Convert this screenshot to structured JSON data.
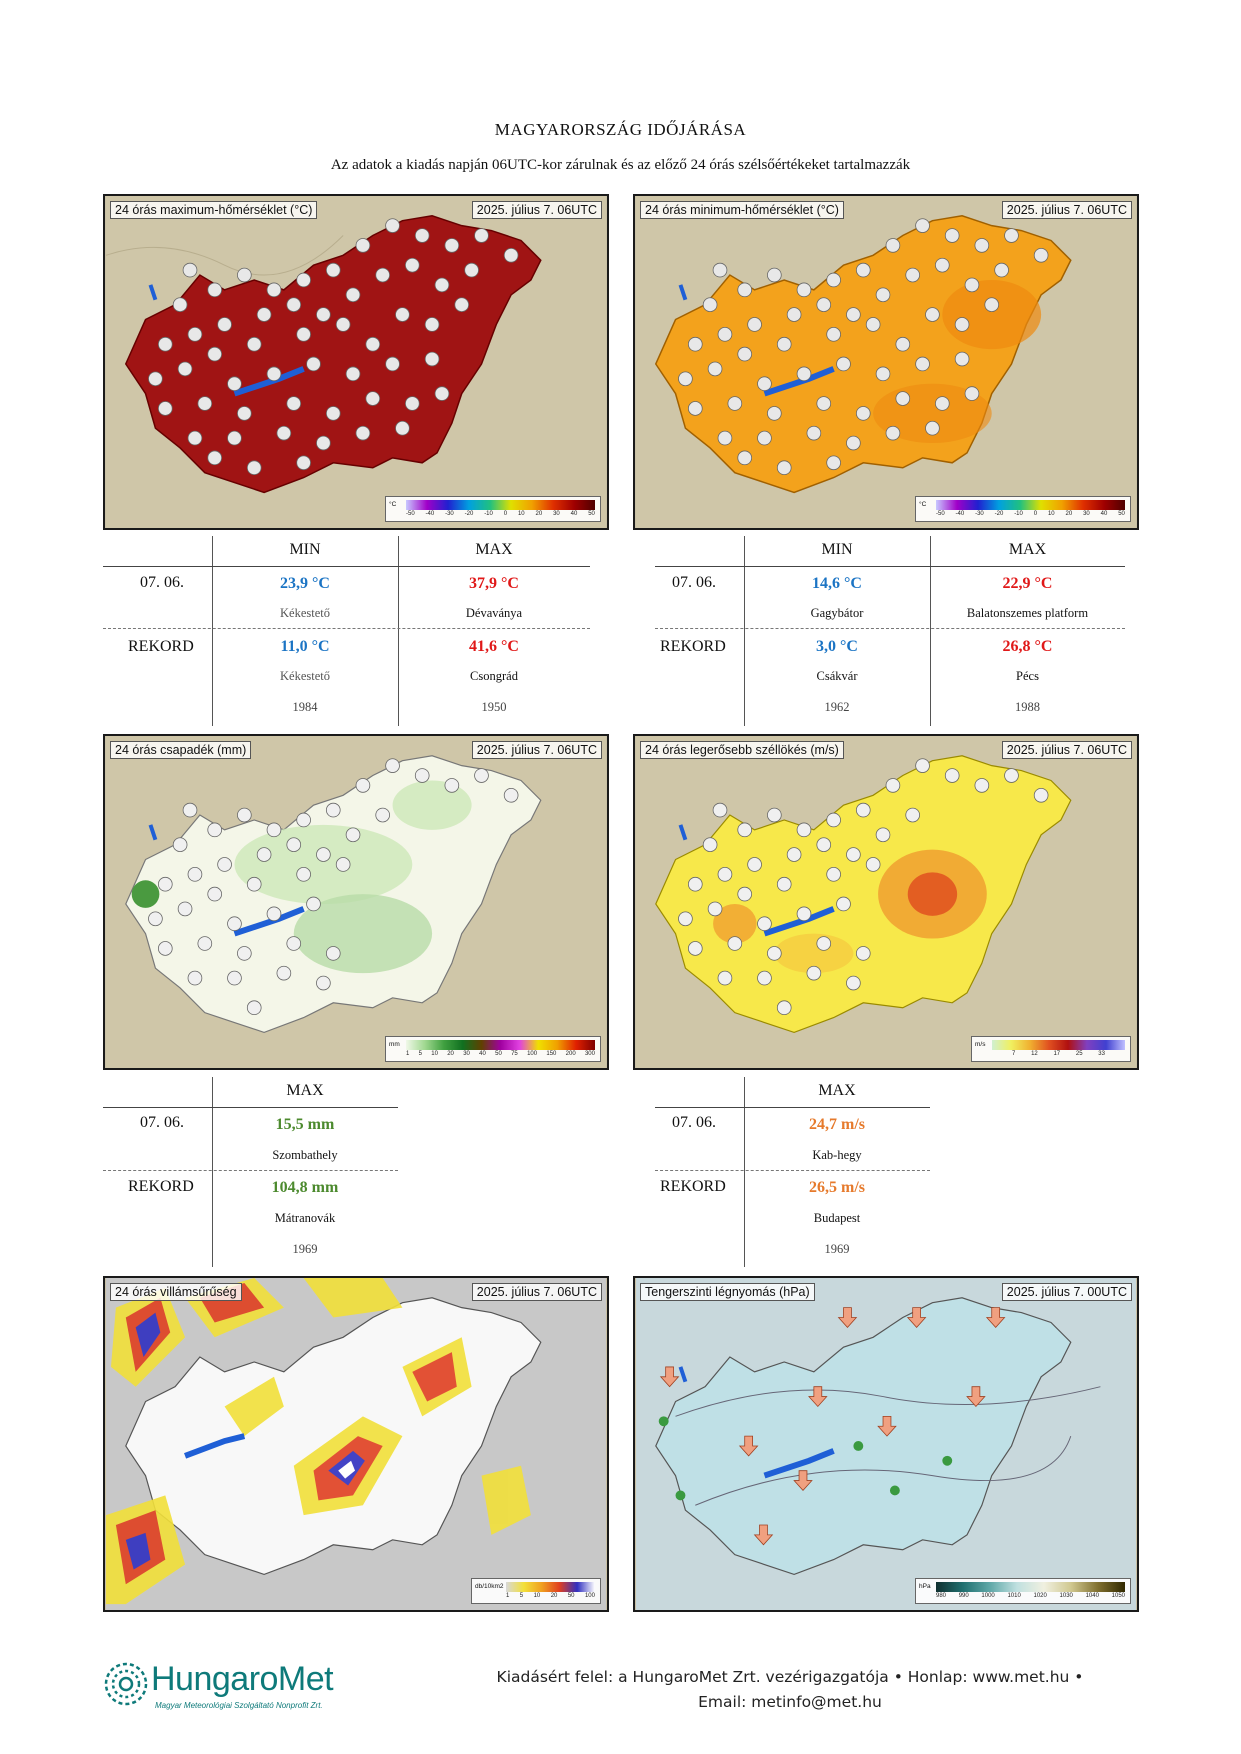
{
  "header": {
    "title": "MAGYARORSZÁG IDŐJÁRÁSA",
    "subtitle": "Az adatok a kiadás napján 06UTC-kor zárulnak és az előző 24 órás szélsőértékeket tartalmazzák"
  },
  "maps": {
    "tmax": {
      "title": "24 órás maximum-hőmérséklet (°C)",
      "date": "2025. július 7. 06UTC",
      "legend_unit": "°C",
      "legend_ticks": [
        "-50",
        "-40",
        "-30",
        "-20",
        "-10",
        "0",
        "10",
        "20",
        "30",
        "40",
        "50"
      ]
    },
    "tmin": {
      "title": "24 órás minimum-hőmérséklet (°C)",
      "date": "2025. július 7. 06UTC",
      "legend_unit": "°C",
      "legend_ticks": [
        "-50",
        "-40",
        "-30",
        "-20",
        "-10",
        "0",
        "10",
        "20",
        "30",
        "40",
        "50"
      ]
    },
    "precip": {
      "title": "24 órás csapadék (mm)",
      "date": "2025. július 7. 06UTC",
      "legend_unit": "mm",
      "legend_ticks": [
        "1",
        "5",
        "10",
        "20",
        "30",
        "40",
        "50",
        "75",
        "100",
        "150",
        "200",
        "300"
      ]
    },
    "gust": {
      "title": "24 órás legerősebb széllökés (m/s)",
      "date": "2025. július 7. 06UTC",
      "legend_unit": "m/s",
      "legend_ticks": [
        "7",
        "12",
        "17",
        "25",
        "33"
      ]
    },
    "lightning": {
      "title": "24 órás villámsűrűség",
      "date": "2025. július 7. 06UTC",
      "legend_unit": "db/10km2",
      "legend_ticks": [
        "1",
        "5",
        "10",
        "20",
        "50",
        "100"
      ]
    },
    "pressure": {
      "title": "Tengerszinti légnyomás (hPa)",
      "date": "2025. július 7. 00UTC",
      "legend_unit": "hPa",
      "legend_ticks": [
        "980",
        "990",
        "1000",
        "1010",
        "1020",
        "1030",
        "1040",
        "1050"
      ]
    }
  },
  "temp_max_min_table": {
    "headers": {
      "min": "MIN",
      "max": "MAX"
    },
    "row1_label": "07. 06.",
    "row2_label": "REKORD",
    "min_value": "23,9 °C",
    "min_place": "Kékestető",
    "max_value": "37,9 °C",
    "max_place": "Dévaványa",
    "rec_min_value": "11,0 °C",
    "rec_min_place": "Kékestető",
    "rec_min_year": "1984",
    "rec_max_value": "41,6 °C",
    "rec_max_place": "Csongrád",
    "rec_max_year": "1950"
  },
  "temp_min_table": {
    "headers": {
      "min": "MIN",
      "max": "MAX"
    },
    "row1_label": "07. 06.",
    "row2_label": "REKORD",
    "min_value": "14,6 °C",
    "min_place": "Gagybátor",
    "max_value": "22,9 °C",
    "max_place": "Balatonszemes platform",
    "rec_min_value": "3,0 °C",
    "rec_min_place": "Csákvár",
    "rec_min_year": "1962",
    "rec_max_value": "26,8 °C",
    "rec_max_place": "Pécs",
    "rec_max_year": "1988"
  },
  "precip_table": {
    "header": "MAX",
    "row1_label": "07. 06.",
    "row2_label": "REKORD",
    "value": "15,5 mm",
    "place": "Szombathely",
    "rec_value": "104,8 mm",
    "rec_place": "Mátranovák",
    "rec_year": "1969"
  },
  "gust_table": {
    "header": "MAX",
    "row1_label": "07. 06.",
    "row2_label": "REKORD",
    "value": "24,7 m/s",
    "place": "Kab-hegy",
    "rec_value": "26,5 m/s",
    "rec_place": "Budapest",
    "rec_year": "1969"
  },
  "footer": {
    "line1": "Kiadásért felel: a HungaroMet Zrt. vezérigazgatója • Honlap: www.met.hu •",
    "line2": "Email: metinfo@met.hu",
    "logo_name": "HungaroMet",
    "logo_sub": "Magyar Meteorológiai Szolgáltató Nonprofit Zrt."
  },
  "colors": {
    "min_blue": "#1b74c4",
    "max_red": "#e01818",
    "precip_green": "#4c8a2e",
    "gust_orange": "#e67a2c"
  }
}
